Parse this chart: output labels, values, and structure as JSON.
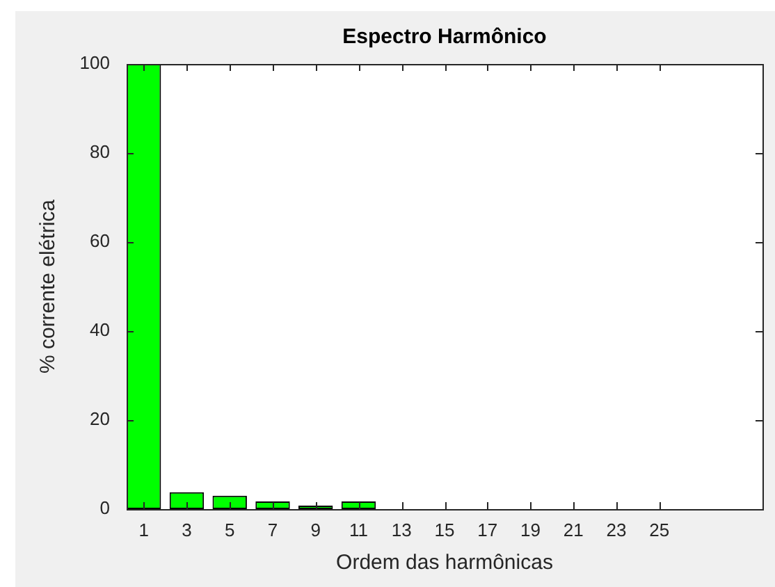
{
  "chart_data": {
    "type": "bar",
    "title": "Espectro Harmônico",
    "xlabel": "Ordem das harmônicas",
    "ylabel": "% corrente elétrica",
    "x": [
      1,
      3,
      5,
      7,
      9,
      11
    ],
    "values": [
      100,
      3.8,
      3,
      1.7,
      0.8,
      1.7
    ],
    "color": "#00ff00",
    "xlim": [
      0.2,
      29.8
    ],
    "xticks": [
      1,
      3,
      5,
      7,
      9,
      11,
      13,
      15,
      17,
      19,
      21,
      23,
      25
    ],
    "ylim": [
      0,
      100
    ],
    "yticks": [
      0,
      20,
      40,
      60,
      80,
      100
    ],
    "grid": false,
    "legend": false
  }
}
